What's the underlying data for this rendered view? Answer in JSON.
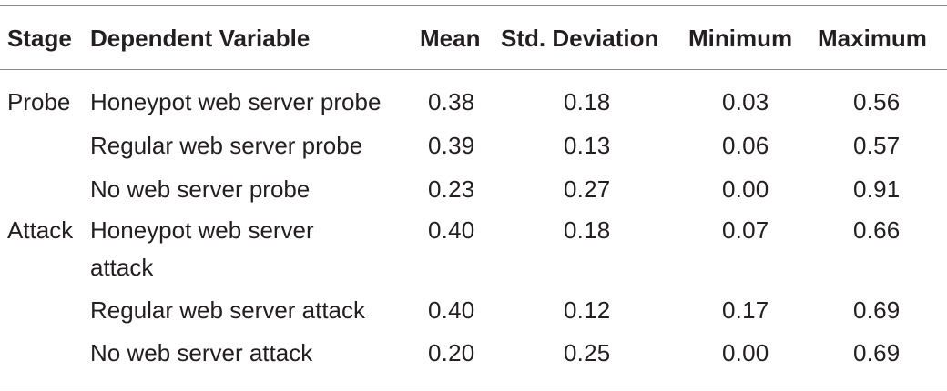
{
  "table": {
    "headers": {
      "stage": "Stage",
      "dependent_variable": "Dependent Variable",
      "mean": "Mean",
      "std_deviation": "Std. Deviation",
      "minimum": "Minimum",
      "maximum": "Maximum"
    },
    "rows": [
      {
        "stage": "Probe",
        "dv_line1": "Honeypot web server probe",
        "dv_line2": "",
        "mean": "0.38",
        "sd": "0.18",
        "min": "0.03",
        "max": "0.56"
      },
      {
        "stage": "",
        "dv_line1": "Regular web server probe",
        "dv_line2": "",
        "mean": "0.39",
        "sd": "0.13",
        "min": "0.06",
        "max": "0.57"
      },
      {
        "stage": "",
        "dv_line1": "No web server probe",
        "dv_line2": "",
        "mean": "0.23",
        "sd": "0.27",
        "min": "0.00",
        "max": "0.91"
      },
      {
        "stage": "Attack",
        "dv_line1": "Honeypot web server",
        "dv_line2": "attack",
        "mean": "0.40",
        "sd": "0.18",
        "min": "0.07",
        "max": "0.66"
      },
      {
        "stage": "",
        "dv_line1": "Regular web server attack",
        "dv_line2": "",
        "mean": "0.40",
        "sd": "0.12",
        "min": "0.17",
        "max": "0.69"
      },
      {
        "stage": "",
        "dv_line1": "No web server attack",
        "dv_line2": "",
        "mean": "0.20",
        "sd": "0.25",
        "min": "0.00",
        "max": "0.69"
      }
    ]
  }
}
